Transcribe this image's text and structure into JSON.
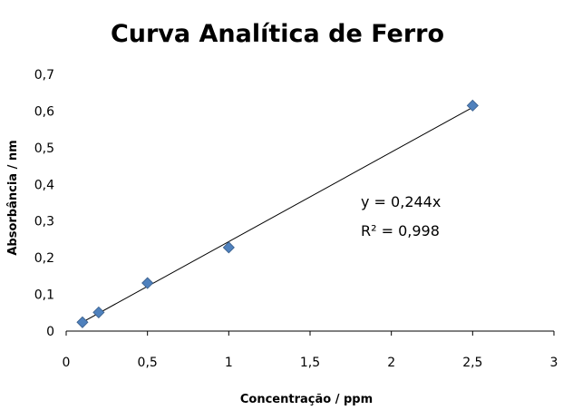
{
  "chart_data": {
    "type": "scatter",
    "title": "Curva Analítica de Ferro",
    "xlabel": "Concentração / ppm",
    "ylabel": "Absorbância / nm",
    "xlim": [
      0,
      3
    ],
    "ylim": [
      0,
      0.7
    ],
    "x_ticks": [
      "0",
      "0,5",
      "1",
      "1,5",
      "2",
      "2,5",
      "3"
    ],
    "y_ticks": [
      "0",
      "0,1",
      "0,2",
      "0,3",
      "0,4",
      "0,5",
      "0,6",
      "0,7"
    ],
    "series": [
      {
        "x": [
          0.1,
          0.2,
          0.5,
          1.0,
          2.5
        ],
        "y": [
          0.024,
          0.051,
          0.131,
          0.228,
          0.615
        ],
        "color": "#4f81bd",
        "marker": "diamond"
      }
    ],
    "trendline": {
      "type": "linear",
      "slope": 0.244,
      "intercept": 0
    },
    "annotations": [
      "y = 0,244x",
      "R² = 0,998"
    ],
    "grid": false,
    "legend": "none"
  }
}
